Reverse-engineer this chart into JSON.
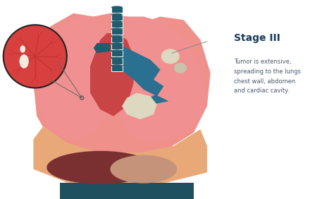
{
  "bg_color": "#ffffff",
  "lung_light": "#f0908a",
  "lung_mid": "#e8756e",
  "lung_dark_area": "#d45a55",
  "heart_color": "#c94545",
  "trachea_color": "#1e5c6e",
  "aorta_color": "#2a7090",
  "liver_color": "#7a3030",
  "liver_tan": "#c4937a",
  "diaphragm_color": "#e8b090",
  "tumor_color": "#ddd8c0",
  "tumor2_color": "#c8c4ac",
  "circle_fill": "#d94040",
  "circle_border": "#1a1a1a",
  "vein_color": "#e07070",
  "line_color": "#555555",
  "stage_color": "#1a3a5c",
  "text_color": "#4a5a6a",
  "title": "Stage III",
  "description": "Tumor is extensive,\nspreading to the lungs\nchest wall, abdomen\nand cardiac cavity."
}
